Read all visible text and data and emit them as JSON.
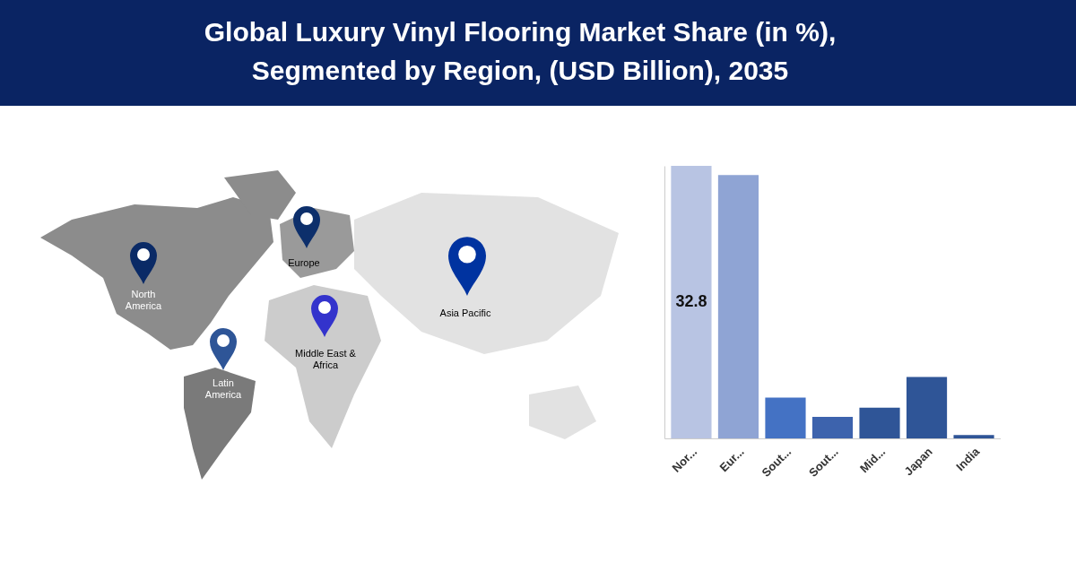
{
  "chart_data": {
    "type": "bar",
    "title": "Global Luxury Vinyl Flooring Market Share (in %), Segmented by Region, (USD Billion), 2035",
    "categories": [
      "Nor...",
      "Eur...",
      "Sout...",
      "Sout...",
      "Mid...",
      "Japan",
      "India"
    ],
    "values": [
      32.8,
      31.7,
      4.9,
      2.6,
      3.7,
      7.4,
      0.4
    ],
    "colors": [
      "#b8c4e3",
      "#8fa4d4",
      "#4472c4",
      "#3d63ad",
      "#2f5597",
      "#2f5597",
      "#2f5597"
    ],
    "value_labels": [
      "32.8",
      null,
      null,
      null,
      null,
      null,
      null
    ],
    "annotations": [
      "North America",
      "Europe",
      "Asia Pacific",
      "Middle East & Africa",
      "Latin America"
    ]
  }
}
